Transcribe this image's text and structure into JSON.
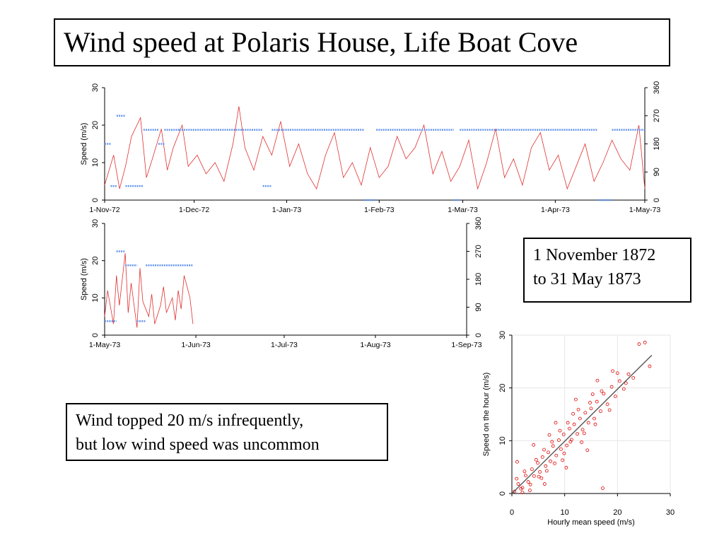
{
  "slide": {
    "title": "Wind speed at Polaris House, Life Boat Cove",
    "date_range": [
      "1 November 1872",
      "to 31 May 1873"
    ],
    "note": [
      "Wind topped 20 m/s infrequently,",
      "but low wind speed was uncommon"
    ]
  },
  "colors": {
    "speed_line": "#e03030",
    "direction_points": "#6495ed",
    "scatter": "#e00000",
    "fit_line": "#555555"
  },
  "chart_data": [
    {
      "type": "line",
      "ylabel": "Speed (m/s)",
      "ylim": [
        0,
        30
      ],
      "yticks": [
        0,
        10,
        20,
        30
      ],
      "y2lim": [
        0,
        360
      ],
      "y2ticks": [
        0,
        90,
        180,
        270,
        360
      ],
      "xlim": [
        "1872-11-01",
        "1873-05-01"
      ],
      "xticks": [
        {
          "date": "1872-11-01",
          "label": "1-Nov-72"
        },
        {
          "date": "1872-12-01",
          "label": "1-Dec-72"
        },
        {
          "date": "1873-01-01",
          "label": "1-Jan-73"
        },
        {
          "date": "1873-02-01",
          "label": "1-Feb-73"
        },
        {
          "date": "1873-03-01",
          "label": "1-Mar-73"
        },
        {
          "date": "1873-04-01",
          "label": "1-Apr-73"
        },
        {
          "date": "1873-05-01",
          "label": "1-May-73"
        }
      ],
      "grid": false,
      "series": [
        {
          "kind": "speed",
          "x_dates": [
            "1872-11-01",
            "1872-11-04",
            "1872-11-06",
            "1872-11-08",
            "1872-11-10",
            "1872-11-13",
            "1872-11-15",
            "1872-11-17",
            "1872-11-20",
            "1872-11-22",
            "1872-11-24",
            "1872-11-27",
            "1872-11-29",
            "1872-12-02",
            "1872-12-05",
            "1872-12-08",
            "1872-12-11",
            "1872-12-14",
            "1872-12-16",
            "1872-12-18",
            "1872-12-21",
            "1872-12-24",
            "1872-12-27",
            "1872-12-30",
            "1873-01-02",
            "1873-01-05",
            "1873-01-08",
            "1873-01-11",
            "1873-01-14",
            "1873-01-17",
            "1873-01-20",
            "1873-01-23",
            "1873-01-26",
            "1873-01-29",
            "1873-02-01",
            "1873-02-04",
            "1873-02-07",
            "1873-02-10",
            "1873-02-13",
            "1873-02-16",
            "1873-02-19",
            "1873-02-22",
            "1873-02-25",
            "1873-02-28",
            "1873-03-03",
            "1873-03-06",
            "1873-03-09",
            "1873-03-12",
            "1873-03-15",
            "1873-03-18",
            "1873-03-21",
            "1873-03-24",
            "1873-03-27",
            "1873-03-30",
            "1873-04-02",
            "1873-04-05",
            "1873-04-08",
            "1873-04-11",
            "1873-04-14",
            "1873-04-17",
            "1873-04-20",
            "1873-04-23",
            "1873-04-26",
            "1873-04-29",
            "1873-05-01"
          ],
          "values": [
            4,
            12,
            3,
            9,
            17,
            22,
            6,
            11,
            19,
            8,
            14,
            20,
            9,
            12,
            7,
            10,
            5,
            15,
            25,
            14,
            8,
            17,
            12,
            21,
            9,
            15,
            7,
            3,
            12,
            18,
            6,
            10,
            4,
            14,
            6,
            9,
            17,
            11,
            14,
            20,
            7,
            13,
            5,
            9,
            16,
            3,
            10,
            19,
            6,
            11,
            4,
            14,
            18,
            8,
            12,
            3,
            9,
            15,
            5,
            10,
            16,
            11,
            8,
            20,
            3
          ]
        },
        {
          "kind": "direction",
          "segments": [
            {
              "start": "1872-11-01",
              "end": "1872-11-03",
              "deg": 180
            },
            {
              "start": "1872-11-03",
              "end": "1872-11-05",
              "deg": 45
            },
            {
              "start": "1872-11-05",
              "end": "1872-11-08",
              "deg": 270
            },
            {
              "start": "1872-11-08",
              "end": "1872-11-14",
              "deg": 45
            },
            {
              "start": "1872-11-14",
              "end": "1872-11-19",
              "deg": 225
            },
            {
              "start": "1872-11-19",
              "end": "1872-11-21",
              "deg": 180
            },
            {
              "start": "1872-11-21",
              "end": "1872-11-26",
              "deg": 225
            },
            {
              "start": "1872-11-26",
              "end": "1872-12-24",
              "deg": 225
            },
            {
              "start": "1872-12-24",
              "end": "1872-12-27",
              "deg": 45
            },
            {
              "start": "1872-12-27",
              "end": "1873-01-27",
              "deg": 225
            },
            {
              "start": "1873-01-27",
              "end": "1873-01-31",
              "deg": 0
            },
            {
              "start": "1873-01-31",
              "end": "1873-02-26",
              "deg": 225
            },
            {
              "start": "1873-02-26",
              "end": "1873-02-28",
              "deg": 0
            },
            {
              "start": "1873-02-28",
              "end": "1873-04-15",
              "deg": 225
            },
            {
              "start": "1873-04-15",
              "end": "1873-04-20",
              "deg": 0
            },
            {
              "start": "1873-04-20",
              "end": "1873-05-01",
              "deg": 225
            }
          ]
        }
      ]
    },
    {
      "type": "line",
      "ylabel": "Speed (m/s)",
      "ylim": [
        0,
        30
      ],
      "yticks": [
        0,
        10,
        20,
        30
      ],
      "y2lim": [
        0,
        360
      ],
      "y2ticks": [
        0,
        90,
        180,
        270,
        360
      ],
      "xlim": [
        "1873-05-01",
        "1873-09-01"
      ],
      "xticks": [
        {
          "date": "1873-05-01",
          "label": "1-May-73"
        },
        {
          "date": "1873-06-01",
          "label": "1-Jun-73"
        },
        {
          "date": "1873-07-01",
          "label": "1-Jul-73"
        },
        {
          "date": "1873-08-01",
          "label": "1-Aug-73"
        },
        {
          "date": "1873-09-01",
          "label": "1-Sep-73"
        }
      ],
      "grid": false,
      "series": [
        {
          "kind": "speed",
          "x_dates": [
            "1873-05-01",
            "1873-05-02",
            "1873-05-04",
            "1873-05-05",
            "1873-05-06",
            "1873-05-08",
            "1873-05-09",
            "1873-05-10",
            "1873-05-12",
            "1873-05-13",
            "1873-05-14",
            "1873-05-16",
            "1873-05-17",
            "1873-05-18",
            "1873-05-20",
            "1873-05-21",
            "1873-05-22",
            "1873-05-24",
            "1873-05-25",
            "1873-05-26",
            "1873-05-27",
            "1873-05-28",
            "1873-05-29",
            "1873-05-30",
            "1873-05-31"
          ],
          "values": [
            5,
            12,
            3,
            16,
            8,
            22,
            6,
            14,
            2,
            18,
            9,
            5,
            11,
            3,
            8,
            13,
            6,
            10,
            4,
            12,
            7,
            16,
            13,
            10,
            3
          ]
        },
        {
          "kind": "direction",
          "segments": [
            {
              "start": "1873-05-01",
              "end": "1873-05-05",
              "deg": 45
            },
            {
              "start": "1873-05-05",
              "end": "1873-05-08",
              "deg": 270
            },
            {
              "start": "1873-05-08",
              "end": "1873-05-12",
              "deg": 225
            },
            {
              "start": "1873-05-12",
              "end": "1873-05-15",
              "deg": 45
            },
            {
              "start": "1873-05-15",
              "end": "1873-05-31",
              "deg": 225
            }
          ]
        }
      ]
    },
    {
      "type": "scatter",
      "xlabel": "Hourly mean speed (m/s)",
      "ylabel": "Speed on the hour (m/s)",
      "xlim": [
        0,
        30
      ],
      "ylim": [
        0,
        30
      ],
      "xticks": [
        0,
        10,
        20,
        30
      ],
      "yticks": [
        0,
        10,
        20,
        30
      ],
      "grid": true,
      "trend_line": {
        "x": [
          0,
          26.5
        ],
        "y": [
          0,
          26.2
        ]
      },
      "points": [
        [
          0.5,
          0.4
        ],
        [
          1.2,
          1.8
        ],
        [
          2.0,
          1.1
        ],
        [
          2.6,
          3.4
        ],
        [
          3.1,
          2.2
        ],
        [
          3.8,
          4.6
        ],
        [
          4.2,
          3.3
        ],
        [
          4.9,
          5.8
        ],
        [
          5.3,
          4.1
        ],
        [
          5.8,
          6.9
        ],
        [
          6.4,
          5.2
        ],
        [
          6.9,
          7.8
        ],
        [
          7.3,
          6.1
        ],
        [
          7.8,
          9.0
        ],
        [
          8.4,
          7.2
        ],
        [
          8.9,
          10.1
        ],
        [
          9.3,
          8.4
        ],
        [
          9.8,
          11.2
        ],
        [
          10.4,
          9.1
        ],
        [
          10.9,
          12.3
        ],
        [
          11.3,
          10.2
        ],
        [
          11.8,
          13.1
        ],
        [
          12.4,
          11.3
        ],
        [
          12.9,
          14.2
        ],
        [
          13.4,
          12.1
        ],
        [
          13.9,
          15.3
        ],
        [
          14.5,
          13.4
        ],
        [
          15.0,
          16.1
        ],
        [
          15.6,
          14.2
        ],
        [
          16.1,
          17.4
        ],
        [
          16.8,
          15.6
        ],
        [
          17.4,
          18.9
        ],
        [
          18.1,
          16.9
        ],
        [
          18.9,
          20.2
        ],
        [
          19.6,
          18.4
        ],
        [
          20.4,
          21.3
        ],
        [
          21.2,
          19.8
        ],
        [
          22.1,
          22.6
        ],
        [
          23.0,
          21.9
        ],
        [
          24.1,
          28.3
        ],
        [
          25.2,
          28.6
        ],
        [
          26.1,
          24.1
        ],
        [
          1.0,
          6.0
        ],
        [
          2.0,
          0.2
        ],
        [
          4.1,
          9.2
        ],
        [
          6.2,
          1.8
        ],
        [
          8.3,
          13.4
        ],
        [
          10.3,
          4.9
        ],
        [
          12.1,
          17.8
        ],
        [
          14.3,
          8.2
        ],
        [
          16.2,
          21.4
        ],
        [
          17.2,
          1.0
        ],
        [
          3.4,
          0.6
        ],
        [
          5.6,
          2.9
        ],
        [
          7.1,
          11.1
        ],
        [
          9.6,
          6.3
        ],
        [
          11.6,
          15.1
        ],
        [
          13.2,
          9.7
        ],
        [
          15.3,
          18.8
        ],
        [
          19.1,
          23.2
        ],
        [
          0.9,
          2.8
        ],
        [
          1.7,
          0.9
        ],
        [
          2.4,
          4.2
        ],
        [
          3.5,
          1.7
        ],
        [
          4.6,
          6.4
        ],
        [
          5.1,
          3.2
        ],
        [
          6.1,
          8.3
        ],
        [
          6.6,
          4.3
        ],
        [
          7.6,
          9.8
        ],
        [
          8.1,
          5.7
        ],
        [
          9.1,
          11.9
        ],
        [
          9.9,
          7.6
        ],
        [
          10.6,
          13.4
        ],
        [
          11.1,
          9.8
        ],
        [
          12.6,
          15.9
        ],
        [
          13.7,
          11.4
        ],
        [
          14.8,
          17.2
        ],
        [
          15.8,
          13.1
        ],
        [
          17.0,
          19.4
        ],
        [
          18.5,
          15.8
        ],
        [
          20.0,
          22.8
        ],
        [
          21.6,
          20.9
        ]
      ]
    }
  ]
}
